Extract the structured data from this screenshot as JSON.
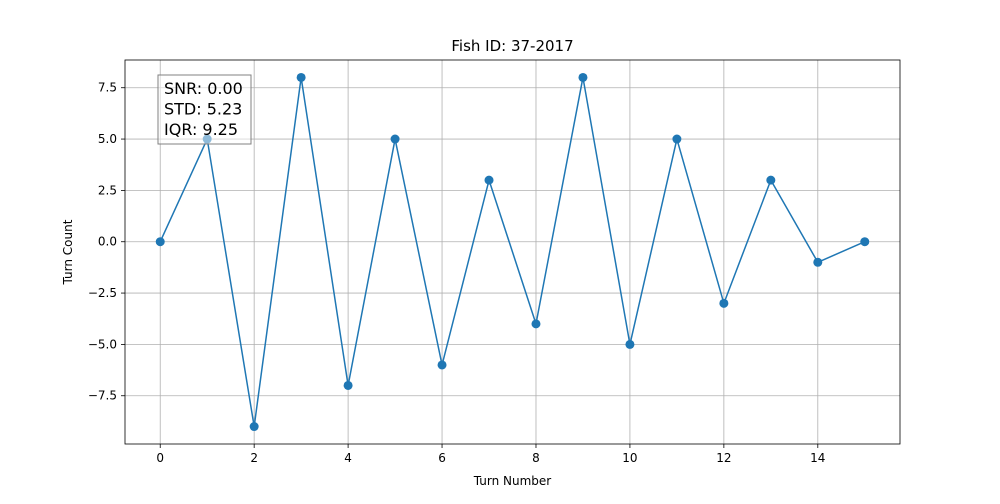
{
  "chart_data": {
    "type": "line",
    "title": "Fish ID: 37-2017",
    "xlabel": "Turn Number",
    "ylabel": "Turn Count",
    "x": [
      0,
      1,
      2,
      3,
      4,
      5,
      6,
      7,
      8,
      9,
      10,
      11,
      12,
      13,
      14,
      15
    ],
    "series": [
      {
        "values": [
          0,
          5,
          -9,
          8,
          -7,
          5,
          -6,
          3,
          -4,
          8,
          -5,
          5,
          -3,
          3,
          -1,
          0
        ],
        "color": "#1f77b4",
        "marker": "circle"
      }
    ],
    "xlim": [
      -0.75,
      15.75
    ],
    "ylim": [
      -9.85,
      8.85
    ],
    "xticks": [
      0,
      2,
      4,
      6,
      8,
      10,
      12,
      14
    ],
    "xtick_labels": [
      "0",
      "2",
      "4",
      "6",
      "8",
      "10",
      "12",
      "14"
    ],
    "yticks": [
      -7.5,
      -5.0,
      -2.5,
      0.0,
      2.5,
      5.0,
      7.5
    ],
    "ytick_labels": [
      "−7.5",
      "−5.0",
      "−2.5",
      "0.0",
      "2.5",
      "5.0",
      "7.5"
    ],
    "grid": true,
    "annotation": {
      "lines": [
        "SNR: 0.00",
        "STD: 5.23",
        "IQR: 9.25"
      ],
      "placement": "top-left"
    }
  }
}
